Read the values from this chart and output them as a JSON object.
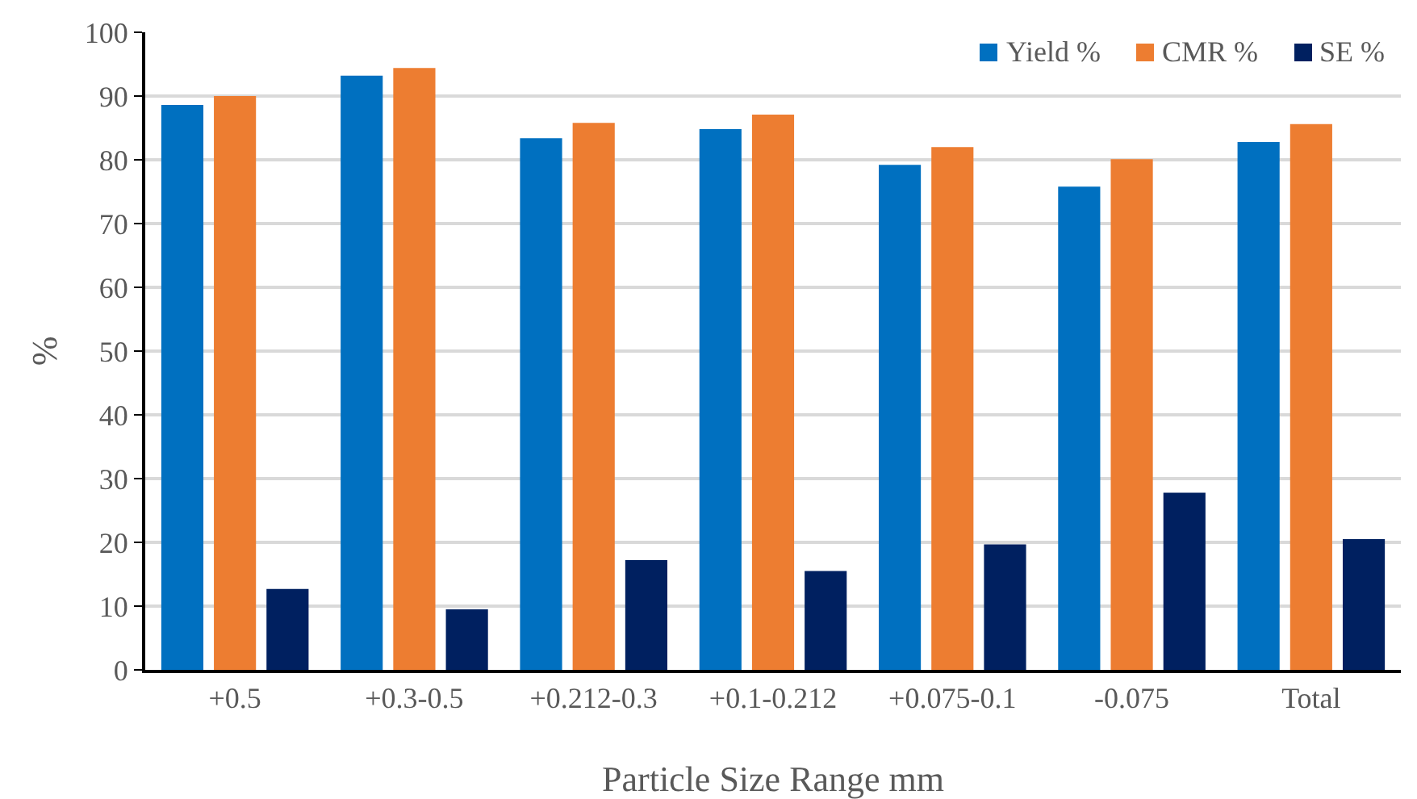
{
  "chart_data": {
    "type": "bar",
    "xlabel": "Particle Size Range mm",
    "ylabel": "%",
    "categories": [
      "+0.5",
      "+0.3-0.5",
      "+0.212-0.3",
      "+0.1-0.212",
      "+0.075-0.1",
      "-0.075",
      "Total"
    ],
    "series": [
      {
        "name": "Yield %",
        "color": "#0070c0",
        "values": [
          88.6,
          93.2,
          83.4,
          84.8,
          79.2,
          75.8,
          82.8
        ]
      },
      {
        "name": "CMR %",
        "color": "#ed7d31",
        "values": [
          90.0,
          94.4,
          85.8,
          87.1,
          82.0,
          80.1,
          85.6
        ]
      },
      {
        "name": "SE %",
        "color": "#002060",
        "values": [
          12.7,
          9.5,
          17.2,
          15.5,
          19.7,
          27.8,
          20.5
        ]
      }
    ],
    "ylim": [
      0,
      100
    ],
    "yticks": [
      0,
      10,
      20,
      30,
      40,
      50,
      60,
      70,
      80,
      90,
      100
    ],
    "grid": "y",
    "legend": "top right"
  }
}
